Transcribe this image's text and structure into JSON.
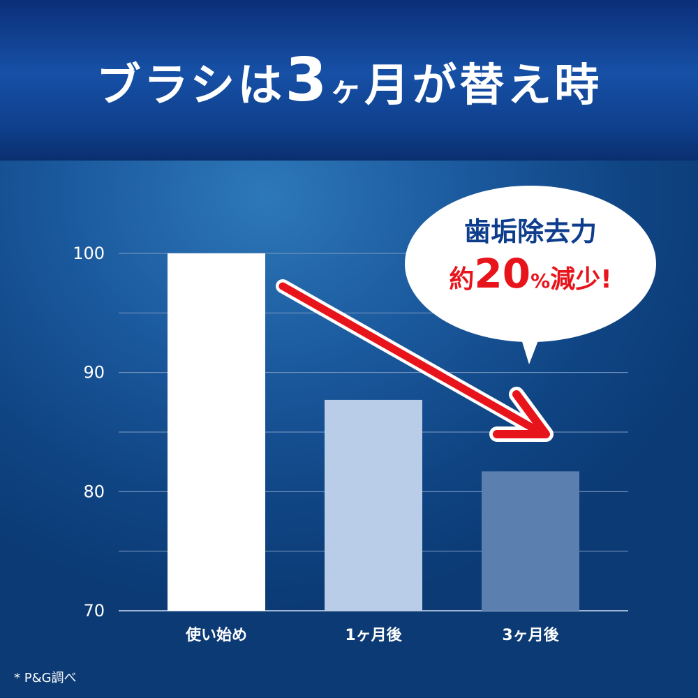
{
  "header": {
    "title_pre": "ブラシは",
    "title_num": "3",
    "title_ke": "ヶ",
    "title_post": "月が替え時"
  },
  "callout": {
    "line1": "歯垢除去力",
    "line2_pre": "約",
    "line2_num": "20",
    "line2_pct": "%",
    "line2_post": "減少!"
  },
  "footnote": "* P&G調べ",
  "colors": {
    "bar1": "#ffffff",
    "bar2": "#b9cde8",
    "bar3": "#5b7fae",
    "arrow": "#e8141c",
    "callout_text": "#0d3d8c"
  },
  "chart_data": {
    "type": "bar",
    "categories": [
      "使い始め",
      "1ヶ月後",
      "3ヶ月後"
    ],
    "values": [
      100,
      87.7,
      81.7
    ],
    "ylim": [
      70,
      100
    ],
    "yticks": [
      "70",
      "80",
      "90",
      "100"
    ],
    "grid": true,
    "title": "",
    "xlabel": "",
    "ylabel": ""
  }
}
